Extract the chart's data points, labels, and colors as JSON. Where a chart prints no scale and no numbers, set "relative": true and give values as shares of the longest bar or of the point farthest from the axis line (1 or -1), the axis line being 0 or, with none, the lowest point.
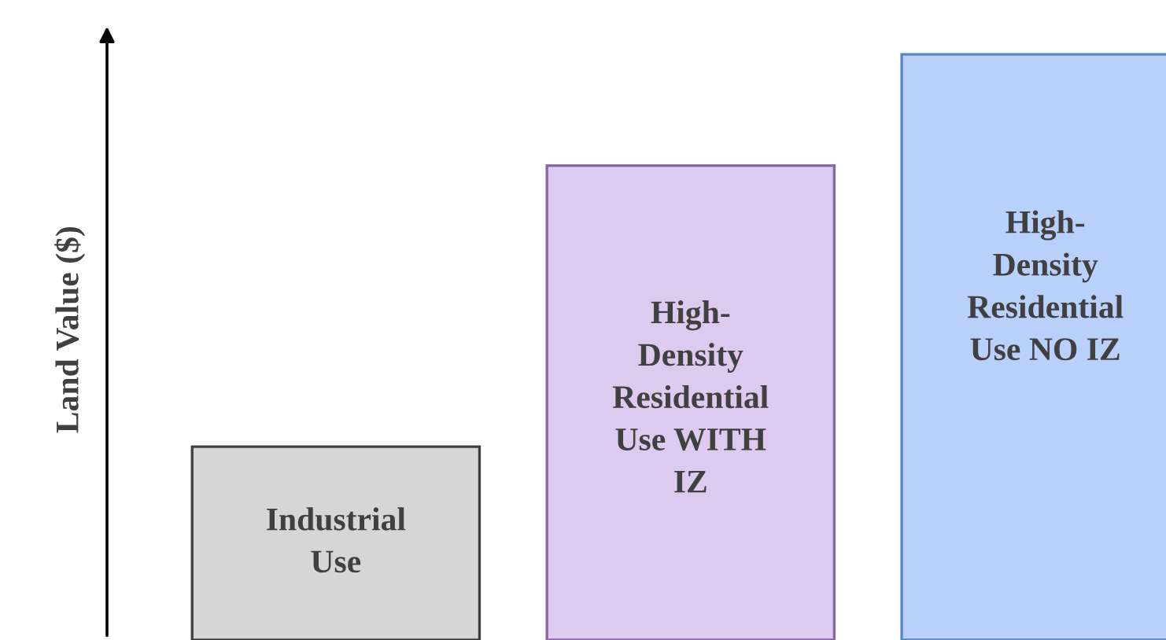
{
  "chart_data": {
    "type": "bar",
    "relative": true,
    "ylabel": "Land Value ($)",
    "categories": [
      "Industrial Use",
      "High-Density Residential Use WITH IZ",
      "High-Density Residential Use NO IZ"
    ],
    "values": [
      0.33,
      0.81,
      1
    ],
    "colors": [
      "#d6d6d6",
      "#dccbee",
      "#b9d0fb"
    ]
  }
}
